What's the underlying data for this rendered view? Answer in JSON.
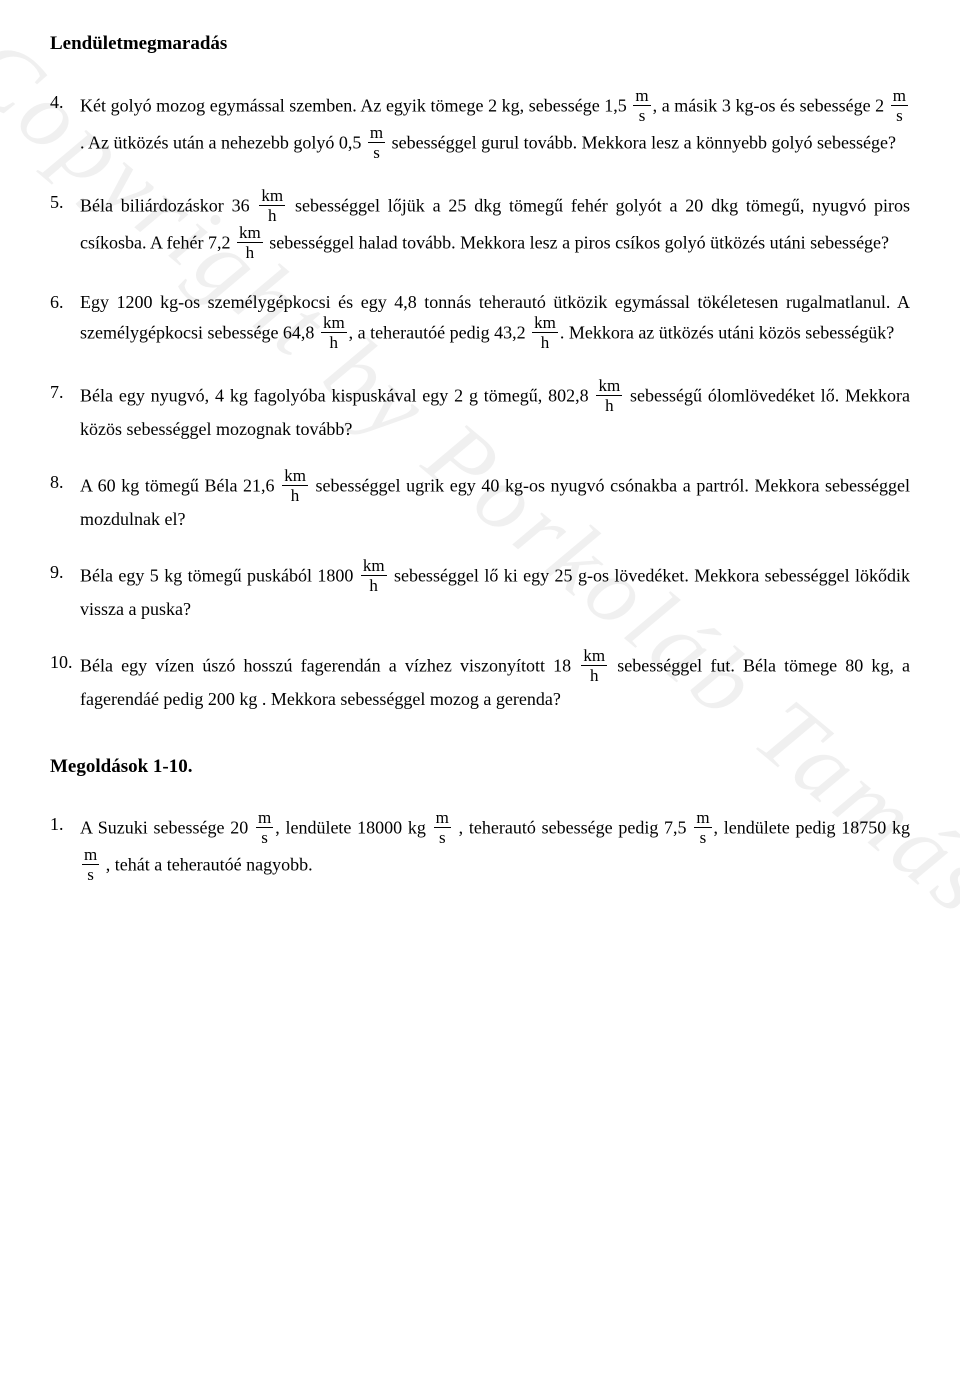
{
  "title": "Lendületmegmaradás",
  "watermark": "Copyright by Porkoláb Tamás",
  "frac": {
    "ms_top": "m",
    "ms_bot": "s",
    "kmh_top": "km",
    "kmh_bot": "h"
  },
  "p4": {
    "num": "4.",
    "t1": "Két golyó mozog egymással szemben. Az egyik tömege 2 kg, sebessége 1,5",
    "t2": ", a másik 3 kg-os és sebessége 2",
    "t3": ". Az ütközés után a nehezebb golyó 0,5",
    "t4": " sebességgel gurul tovább. Mekkora lesz a könnyebb golyó sebessége?"
  },
  "p5": {
    "num": "5.",
    "t1": "Béla biliárdozáskor 36",
    "t2": " sebességgel lőjük a 25 dkg tömegű fehér golyót a 20 dkg tömegű, nyugvó piros csíkosba. A fehér 7,2",
    "t3": " sebességgel halad tovább. Mekkora lesz a piros csíkos golyó ütközés utáni sebessége?"
  },
  "p6": {
    "num": "6.",
    "t1": "Egy 1200 kg-os személygépkocsi és egy 4,8 tonnás teherautó ütközik egymással tökéletesen rugalmatlanul. A személygépkocsi sebessége 64,8",
    "t2": ", a teherautóé pedig 43,2",
    "t3": ". Mekkora az ütközés utáni közös sebességük?"
  },
  "p7": {
    "num": "7.",
    "t1": "Béla egy nyugvó, 4 kg fagolyóba kispuskával egy 2 g tömegű, 802,8",
    "t2": " sebességű ólomlövedéket lő. Mekkora közös sebességgel mozognak tovább?"
  },
  "p8": {
    "num": "8.",
    "t1": "A 60 kg tömegű Béla 21,6",
    "t2": " sebességgel ugrik egy 40 kg-os nyugvó csónakba a partról. Mekkora sebességgel mozdulnak el?"
  },
  "p9": {
    "num": "9.",
    "t1": "Béla egy 5 kg tömegű puskából 1800",
    "t2": " sebességgel lő ki egy 25 g-os lövedéket. Mekkora sebességgel lökődik vissza a puska?"
  },
  "p10": {
    "num": "10.",
    "t1": "Béla egy vízen úszó hosszú fagerendán a vízhez viszonyított 18",
    "t2": " sebességgel fut. Béla tömege 80 kg, a fagerendáé pedig 200 kg . Mekkora sebességgel mozog a gerenda?"
  },
  "solutions_heading": "Megoldások 1-10.",
  "s1": {
    "num": "1.",
    "t1": "A Suzuki sebessége 20",
    "t2": ", lendülete 18000 kg",
    "t3": " , teherautó sebessége pedig 7,5",
    "t4": ", lendülete pedig 18750 kg",
    "t5": " , tehát a teherautóé nagyobb."
  }
}
